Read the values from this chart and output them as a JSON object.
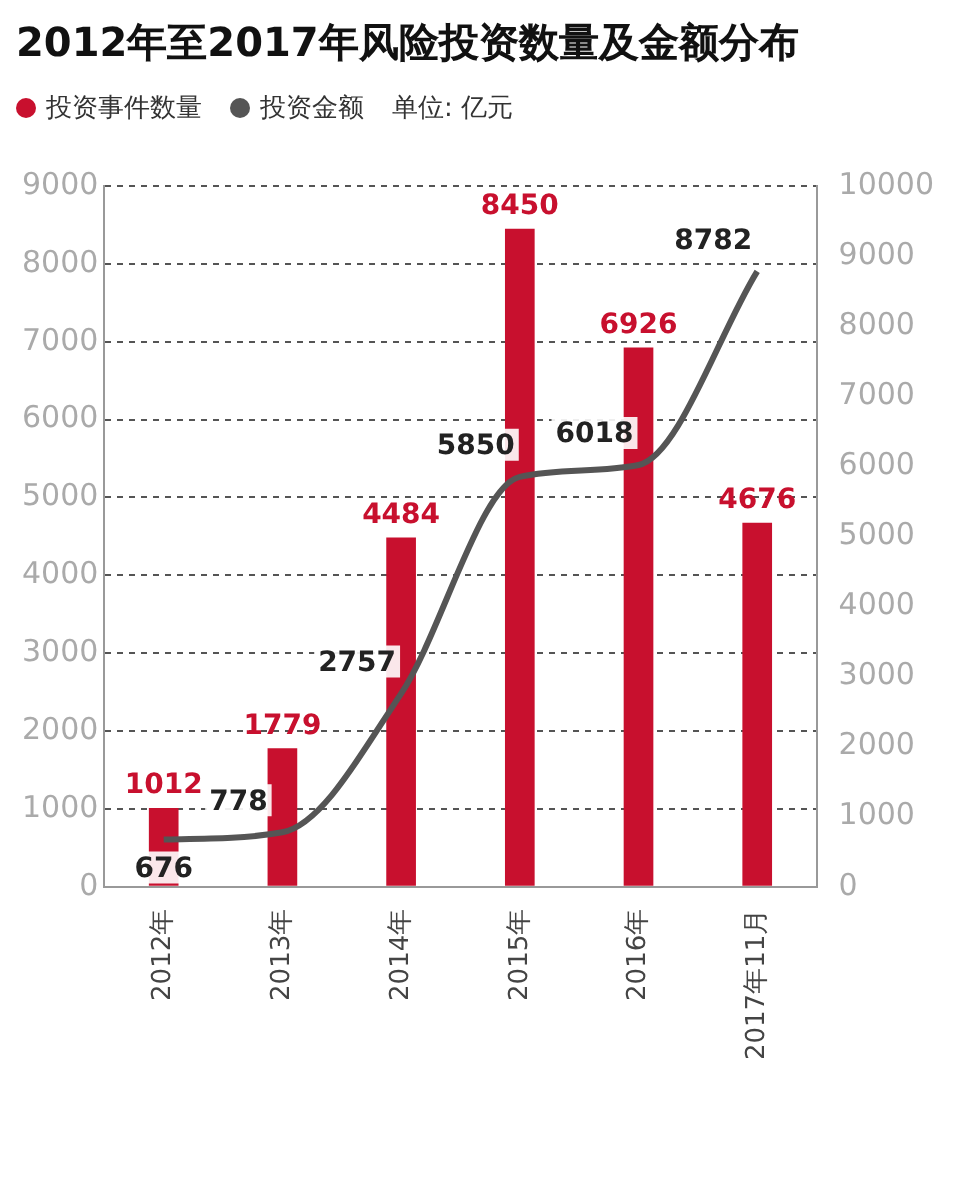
{
  "chart_data": {
    "type": "bar",
    "title": "2012年至2017年风险投资数量及金额分布",
    "annotations": [
      "单位: 亿元"
    ],
    "categories": [
      "2012年",
      "2013年",
      "2014年",
      "2015年",
      "2016年",
      "2017年11月"
    ],
    "series": [
      {
        "name": "投资事件数量",
        "color": "#c8102e",
        "values": [
          1012,
          1779,
          4484,
          8450,
          6926,
          4676
        ]
      },
      {
        "name": "投资金额",
        "type": "line",
        "axis": "y2",
        "color": "#555555",
        "values": [
          676,
          778,
          2757,
          5850,
          6018,
          8782
        ]
      }
    ],
    "ylim": [
      0,
      9000
    ],
    "yticks": [
      0,
      1000,
      2000,
      3000,
      4000,
      5000,
      6000,
      7000,
      8000,
      9000
    ],
    "y2lim": [
      0,
      10000
    ],
    "y2ticks": [
      0,
      1000,
      2000,
      3000,
      4000,
      5000,
      6000,
      7000,
      8000,
      9000,
      10000
    ],
    "grid": "y",
    "legend": "top left",
    "data_labels": true,
    "marker": "none",
    "line_style": "solid"
  }
}
